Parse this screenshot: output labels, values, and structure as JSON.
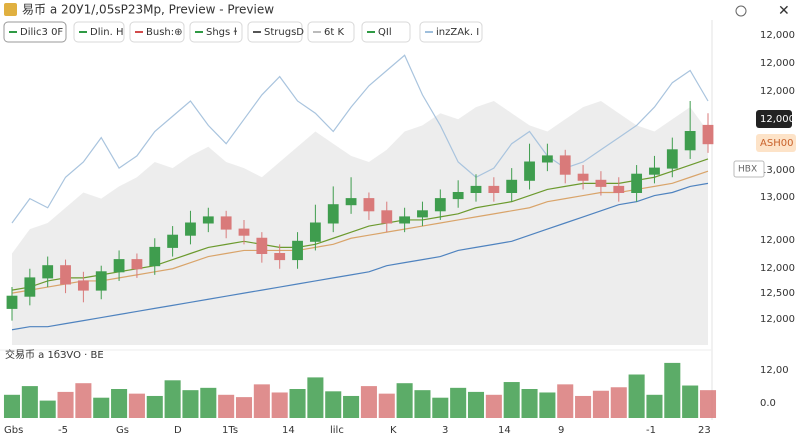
{
  "window_title": "易币 a 20У1/,05sP23Mp, Preview - Preview",
  "toolbar": [
    {
      "label": "Dilic3 0F",
      "color": "#2f9a44"
    },
    {
      "label": "Dlin. H",
      "color": "#2f9a44"
    },
    {
      "label": "Bush:⊕",
      "color": "#d24b4b"
    },
    {
      "label": "Shgs ɫ",
      "color": "#2f9a44"
    },
    {
      "label": "StrugsD",
      "color": "#555555"
    },
    {
      "label": "6t K",
      "color": "#bbbbbb"
    },
    {
      "label": "QIl",
      "color": "#2f9a44"
    },
    {
      "label": "inzZAk. I",
      "color": "#9fbfdc"
    }
  ],
  "price_labels": [
    "12,000",
    "12,000",
    "12,000",
    "12,000",
    "ASH00",
    "13,000",
    "13,000",
    "12,000",
    "12,000",
    "12,500",
    "12,000"
  ],
  "side_tag": "HBX",
  "volume_title": "交易币 a 1бЗVO · BE",
  "volume_labels": [
    "12,00",
    "0.0"
  ],
  "x_labels": [
    "Gbs",
    "-5",
    "Gs",
    "D",
    "1Ts",
    "14",
    "lilc",
    "K",
    "3",
    "14",
    "9",
    "-1",
    "23"
  ],
  "chart_data": {
    "type": "candlestick",
    "ylim": [
      0,
      100
    ],
    "volume_lim": [
      0,
      100
    ],
    "up_color": "#3f9d4e",
    "down_color": "#d97a7a",
    "open": [
      12,
      16,
      22,
      26,
      21,
      18,
      24,
      28,
      26,
      32,
      36,
      40,
      42,
      38,
      35,
      30,
      28,
      34,
      40,
      46,
      48,
      44,
      40,
      42,
      44,
      48,
      50,
      52,
      50,
      54,
      60,
      62,
      56,
      54,
      52,
      50,
      56,
      58,
      64,
      72
    ],
    "close": [
      16,
      22,
      26,
      20,
      18,
      24,
      28,
      25,
      32,
      36,
      40,
      42,
      38,
      36,
      30,
      28,
      34,
      40,
      46,
      48,
      44,
      40,
      42,
      44,
      48,
      50,
      52,
      50,
      54,
      60,
      62,
      56,
      54,
      52,
      50,
      56,
      58,
      64,
      70,
      66
    ],
    "high": [
      19,
      25,
      29,
      28,
      24,
      26,
      31,
      30,
      35,
      39,
      44,
      45,
      44,
      41,
      37,
      33,
      37,
      46,
      52,
      55,
      50,
      47,
      45,
      47,
      51,
      54,
      56,
      55,
      58,
      66,
      66,
      64,
      59,
      57,
      55,
      59,
      62,
      68,
      80,
      76
    ],
    "low": [
      8,
      13,
      19,
      17,
      14,
      15,
      21,
      22,
      23,
      29,
      33,
      37,
      35,
      33,
      27,
      25,
      25,
      31,
      37,
      43,
      41,
      37,
      37,
      39,
      41,
      45,
      47,
      47,
      47,
      51,
      57,
      53,
      51,
      49,
      47,
      47,
      53,
      55,
      61,
      63
    ],
    "volume": [
      40,
      55,
      30,
      45,
      60,
      35,
      50,
      42,
      38,
      65,
      48,
      52,
      40,
      36,
      58,
      44,
      50,
      70,
      46,
      38,
      55,
      42,
      60,
      48,
      35,
      52,
      45,
      40,
      62,
      50,
      44,
      58,
      38,
      47,
      53,
      75,
      40,
      95,
      56,
      48
    ],
    "area": {
      "color": "#e6e6e6",
      "values": [
        30,
        38,
        40,
        45,
        50,
        48,
        52,
        55,
        60,
        58,
        62,
        65,
        60,
        58,
        55,
        60,
        65,
        70,
        66,
        62,
        60,
        64,
        70,
        72,
        76,
        74,
        78,
        80,
        76,
        72,
        70,
        74,
        78,
        80,
        76,
        72,
        70,
        74,
        78,
        70
      ]
    },
    "series": [
      {
        "color": "#a9c4de",
        "values": [
          40,
          48,
          45,
          55,
          60,
          68,
          58,
          62,
          70,
          75,
          80,
          72,
          66,
          74,
          82,
          88,
          80,
          76,
          70,
          78,
          85,
          90,
          95,
          82,
          72,
          60,
          55,
          58,
          66,
          70,
          62,
          58,
          60,
          64,
          68,
          72,
          78,
          86,
          90,
          80
        ]
      },
      {
        "color": "#4f83bf",
        "values": [
          5,
          6,
          6,
          7,
          8,
          9,
          10,
          11,
          12,
          13,
          14,
          15,
          16,
          17,
          18,
          19,
          20,
          21,
          22,
          23,
          24,
          26,
          27,
          28,
          29,
          31,
          32,
          33,
          34,
          36,
          38,
          40,
          42,
          44,
          46,
          47,
          49,
          50,
          52,
          53
        ]
      },
      {
        "color": "#d9a46a",
        "values": [
          17,
          18,
          19,
          20,
          21,
          21,
          22,
          23,
          24,
          25,
          27,
          29,
          30,
          31,
          31,
          31,
          31,
          32,
          33,
          35,
          36,
          37,
          38,
          39,
          40,
          41,
          42,
          43,
          44,
          45,
          47,
          48,
          49,
          50,
          50,
          51,
          52,
          53,
          55,
          57
        ]
      },
      {
        "color": "#6c9a2e",
        "values": [
          18,
          19,
          21,
          22,
          22,
          23,
          24,
          25,
          26,
          28,
          30,
          32,
          33,
          34,
          33,
          32,
          32,
          33,
          35,
          37,
          39,
          40,
          41,
          41,
          42,
          43,
          45,
          46,
          47,
          49,
          51,
          52,
          53,
          53,
          53,
          54,
          55,
          57,
          59,
          61
        ]
      }
    ]
  }
}
